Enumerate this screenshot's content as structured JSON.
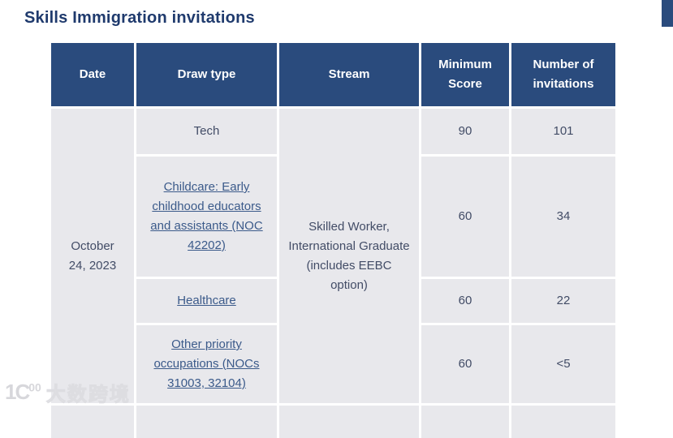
{
  "page": {
    "title": "Skills Immigration invitations"
  },
  "table": {
    "headers": [
      "Date",
      "Draw type",
      "Stream",
      "Minimum Score",
      "Number of invitations"
    ],
    "date": "October 24, 2023",
    "stream": "Skilled Worker, International Graduate (includes EEBC option)",
    "rows": [
      {
        "draw_type": "Tech",
        "minimum_score": "90",
        "invitations": "101"
      },
      {
        "draw_type": "Childcare: Early childhood educators and assistants (NOC 42202)",
        "minimum_score": "60",
        "invitations": "34"
      },
      {
        "draw_type": "Healthcare",
        "minimum_score": "60",
        "invitations": "22"
      },
      {
        "draw_type": "Other priority occupations (NOCs 31003, 32104)",
        "minimum_score": "60",
        "invitations": "<5"
      }
    ]
  },
  "watermark": {
    "logo_text": "1C",
    "logo_sup": "00",
    "brand": "大数跨境"
  },
  "colors": {
    "header_bg": "#2a4b7d",
    "cell_bg": "#e8e8ec",
    "title_text": "#1f3a6d",
    "link": "#3b5a8a",
    "body_text": "#424c66"
  }
}
